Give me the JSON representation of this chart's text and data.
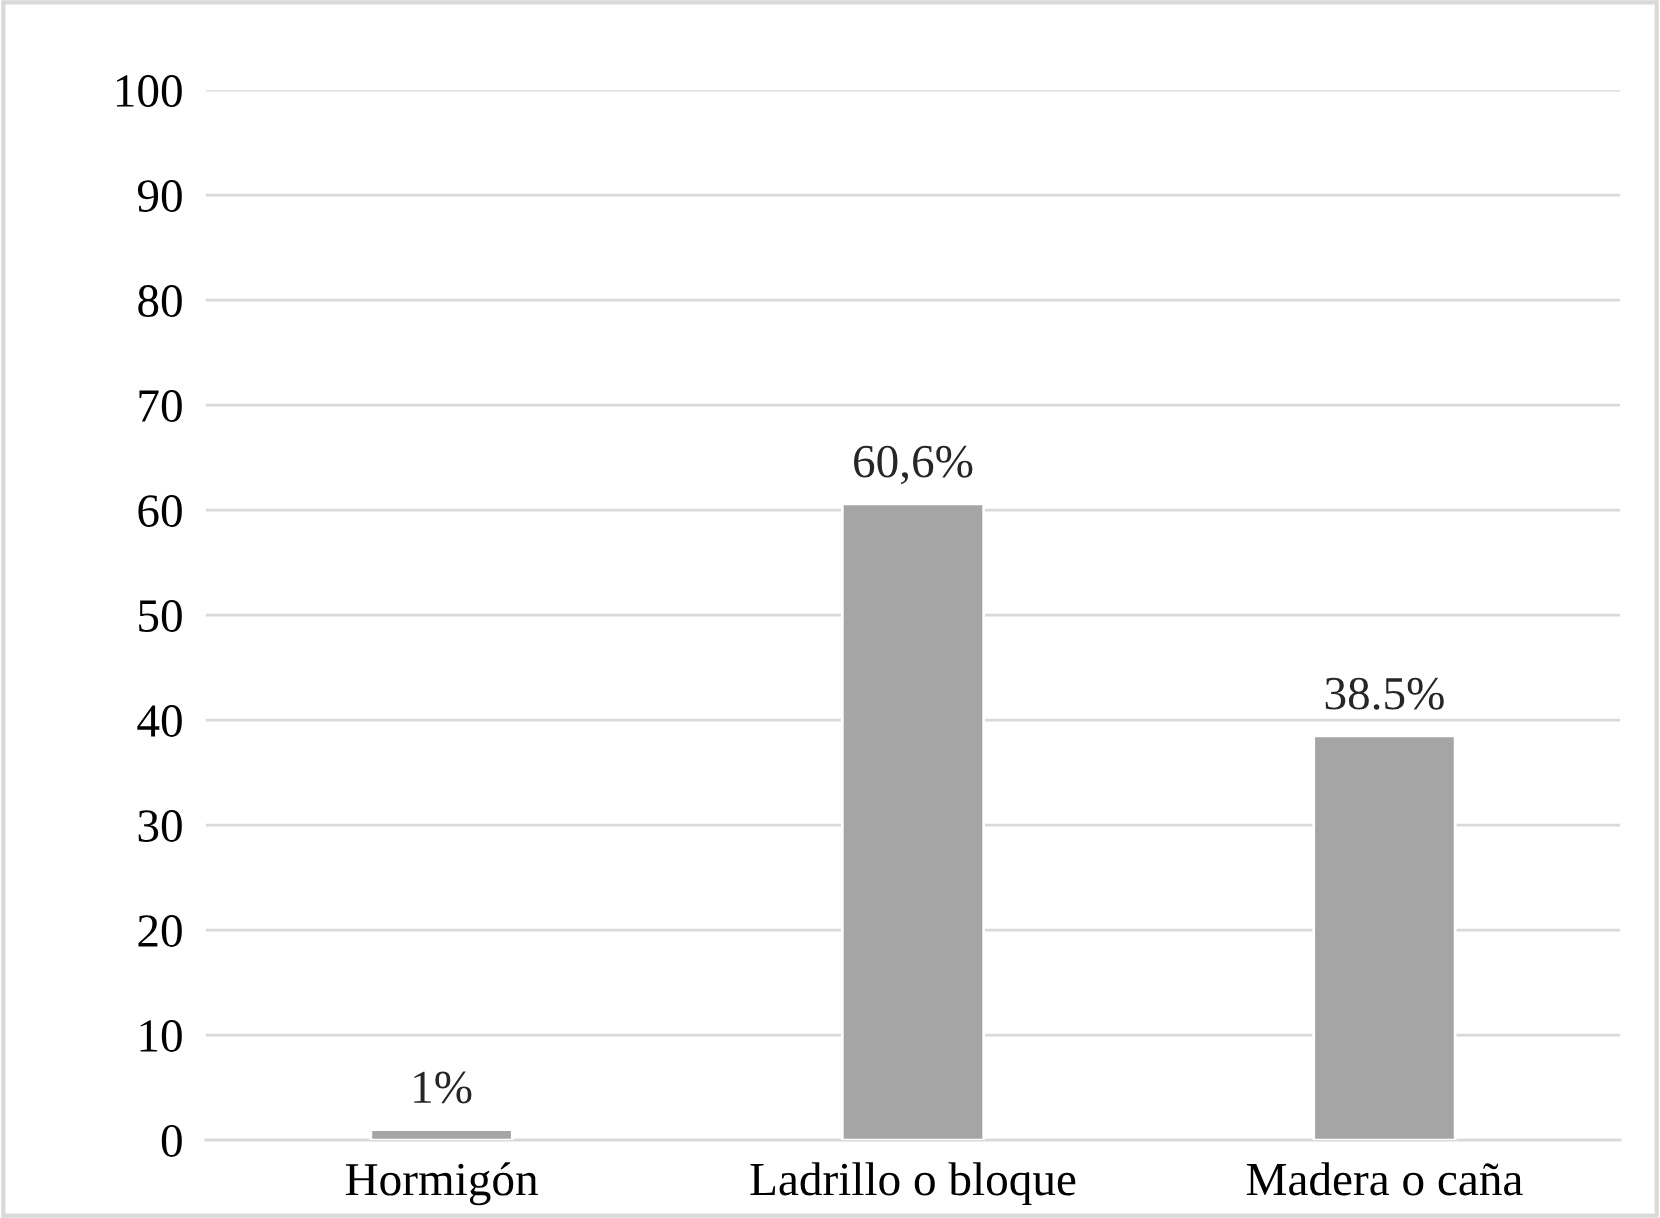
{
  "chart_data": {
    "type": "bar",
    "categories": [
      "Hormigón",
      "Ladrillo o bloque",
      "Madera o caña"
    ],
    "values": [
      1,
      60.6,
      38.5
    ],
    "value_labels": [
      "1%",
      "60,6%",
      "38.5%"
    ],
    "color": "#a5a5a5",
    "ylim": [
      0,
      100
    ],
    "yticks": [
      0,
      10,
      20,
      30,
      40,
      50,
      60,
      70,
      80,
      90,
      100
    ],
    "grid": "y",
    "legend": false
  }
}
